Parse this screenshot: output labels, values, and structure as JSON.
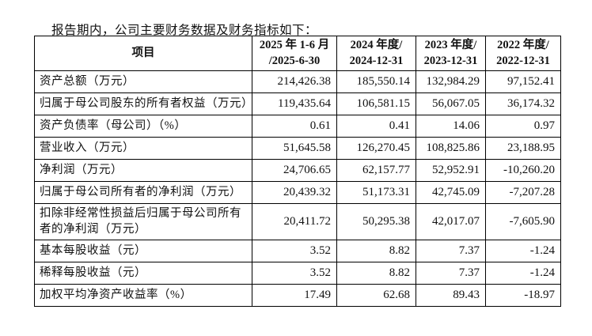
{
  "page": {
    "intro": "报告期内，公司主要财务数据及财务指标如下："
  },
  "table": {
    "header": {
      "item_label": "项目",
      "periods": [
        {
          "line1": "2025 年 1-6 月",
          "line2": "/2025-6-30"
        },
        {
          "line1": "2024 年度/",
          "line2": "2024-12-31"
        },
        {
          "line1": "2023 年度/",
          "line2": "2023-12-31"
        },
        {
          "line1": "2022 年度/",
          "line2": "2022-12-31"
        }
      ]
    },
    "rows": [
      {
        "label": "资产总额（万元）",
        "values": [
          "214,426.38",
          "185,550.14",
          "132,984.29",
          "97,152.41"
        ]
      },
      {
        "label": "归属于母公司股东的所有者权益（万元）",
        "values": [
          "119,435.64",
          "106,581.15",
          "56,067.05",
          "36,174.32"
        ]
      },
      {
        "label": "资产负债率（母公司）（%）",
        "values": [
          "0.61",
          "0.41",
          "14.06",
          "0.97"
        ]
      },
      {
        "label": "营业收入（万元）",
        "values": [
          "51,645.58",
          "126,270.45",
          "108,825.86",
          "23,188.95"
        ]
      },
      {
        "label": "净利润（万元）",
        "values": [
          "24,706.65",
          "62,157.77",
          "52,952.91",
          "-10,260.20"
        ]
      },
      {
        "label": "归属于母公司所有者的净利润（万元）",
        "values": [
          "20,439.32",
          "51,173.31",
          "42,745.09",
          "-7,207.28"
        ]
      },
      {
        "label": "扣除非经常性损益后归属于母公司所有者的净利润（万元）",
        "values": [
          "20,411.72",
          "50,295.38",
          "42,017.07",
          "-7,605.90"
        ]
      },
      {
        "label": "基本每股收益（元）",
        "values": [
          "3.52",
          "8.82",
          "7.37",
          "-1.24"
        ]
      },
      {
        "label": "稀释每股收益（元）",
        "values": [
          "3.52",
          "8.82",
          "7.37",
          "-1.24"
        ]
      },
      {
        "label": "加权平均净资产收益率（%）",
        "values": [
          "17.49",
          "62.68",
          "89.43",
          "-18.97"
        ]
      }
    ]
  },
  "colors": {
    "text": "#111111",
    "border": "#000000",
    "background": "#ffffff"
  }
}
